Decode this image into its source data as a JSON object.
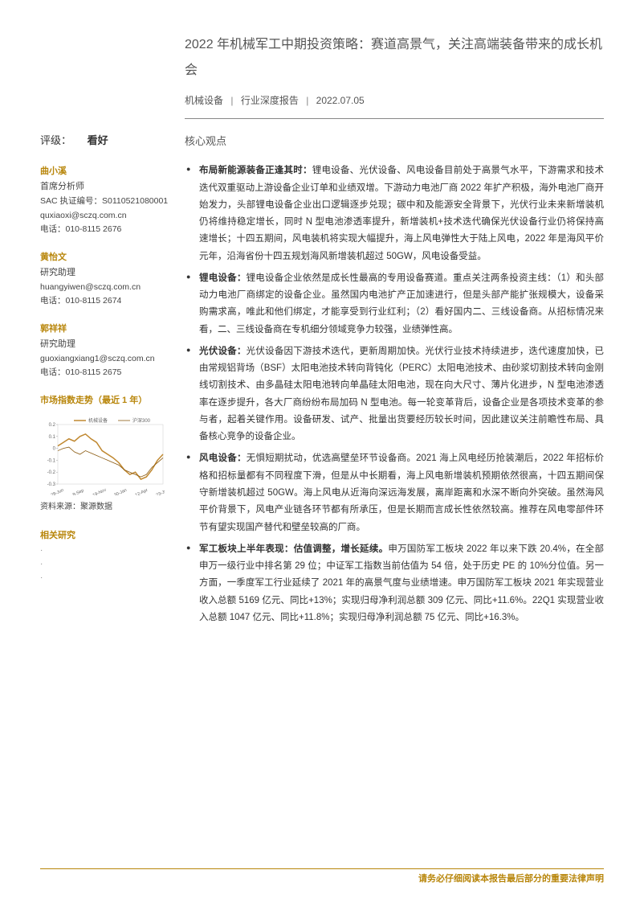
{
  "header": {
    "title": "2022 年机械军工中期投资策略：赛道高景气，关注高端装备带来的成长机会",
    "industry": "机械设备",
    "report_type": "行业深度报告",
    "date": "2022.07.05"
  },
  "rating": {
    "label": "评级：",
    "value": "看好"
  },
  "analysts": [
    {
      "name": "曲小溪",
      "role": "首席分析师",
      "sac": "SAC 执证编号：S0110521080001",
      "email": "quxiaoxi@sczq.com.cn",
      "phone": "电话：010-8115 2676"
    },
    {
      "name": "黄怡文",
      "role": "研究助理",
      "email": "huangyiwen@sczq.com.cn",
      "phone": "电话：010-8115 2674"
    },
    {
      "name": "郭祥祥",
      "role": "研究助理",
      "email": "guoxiangxiang1@sczq.com.cn",
      "phone": "电话：010-8115 2675"
    }
  ],
  "chart": {
    "title": "市场指数走势（最近 1 年）",
    "legend_a": "机械设备",
    "legend_b": "沪深300",
    "yticks": [
      "0.2",
      "0.1",
      "0",
      "-0.1",
      "-0.2",
      "-0.3"
    ],
    "xticks": [
      "28-Jun",
      "8-Sep",
      "19-Nov",
      "30-Jan",
      "12-Apr",
      "23-Jun"
    ],
    "color_a": "#c08830",
    "color_b": "#8a5a10",
    "source": "资料来源：聚源数据",
    "series_a": [
      0.02,
      0.05,
      0.08,
      0.06,
      0.1,
      0.12,
      0.08,
      0.05,
      -0.02,
      -0.05,
      -0.08,
      -0.12,
      -0.18,
      -0.22,
      -0.2,
      -0.26,
      -0.24,
      -0.18,
      -0.1,
      -0.05
    ],
    "series_b": [
      -0.02,
      0.0,
      0.01,
      -0.03,
      -0.05,
      -0.02,
      -0.04,
      -0.06,
      -0.08,
      -0.1,
      -0.12,
      -0.14,
      -0.18,
      -0.2,
      -0.22,
      -0.24,
      -0.22,
      -0.16,
      -0.12,
      -0.08
    ],
    "ylim": [
      -0.3,
      0.2
    ]
  },
  "related": {
    "title": "相关研究",
    "items": [
      "·",
      "·",
      "·"
    ]
  },
  "core": {
    "title": "核心观点",
    "b1_bold": "布局新能源装备正逢其时：",
    "b1_text": "锂电设备、光伏设备、风电设备目前处于高景气水平，下游需求和技术迭代双重驱动上游设备企业订单和业绩双增。下游动力电池厂商 2022 年扩产积极，海外电池厂商开始发力，头部锂电设备企业出口逻辑逐步兑现；碳中和及能源安全背景下，光伏行业未来新增装机仍将维持稳定增长，同时 N 型电池渗透率提升，新增装机+技术迭代确保光伏设备行业仍将保持高速增长；十四五期间，风电装机将实现大幅提升，海上风电弹性大于陆上风电，2022 年是海风平价元年，沿海省份十四五规划海风新增装机超过 50GW，风电设备受益。",
    "b2_bold": "锂电设备：",
    "b2_text": "锂电设备企业依然是成长性最高的专用设备赛道。重点关注两条投资主线：（1）和头部动力电池厂商绑定的设备企业。虽然国内电池扩产正加速进行，但是头部产能扩张规模大，设备采购需求高，唯此和他们绑定，才能享受到行业红利；（2）看好国内二、三线设备商。从招标情况来看，二、三线设备商在专机细分领域竞争力较强，业绩弹性高。",
    "b3_bold": "光伏设备：",
    "b3_text": "光伏设备因下游技术迭代，更新周期加快。光伏行业技术持续进步，迭代速度加快，已由常规铝背场（BSF）太阳电池技术转向背钝化（PERC）太阳电池技术、由砂浆切割技术转向金刚线切割技术、由多晶硅太阳电池转向单晶硅太阳电池，现在向大尺寸、薄片化进步，N 型电池渗透率在逐步提升，各大厂商纷纷布局加码 N 型电池。每一轮变革背后，设备企业是各项技术变革的参与者，起着关键作用。设备研发、试产、批量出货要经历较长时间，因此建议关注前瞻性布局、具备核心竞争的设备企业。",
    "b4_bold": "风电设备：",
    "b4_text": "无惧短期扰动，优选高壁垒环节设备商。2021 海上风电经历抢装潮后，2022 年招标价格和招标量都有不同程度下滑，但是从中长期看，海上风电新增装机预期依然很高，十四五期间保守新增装机超过 50GW。海上风电从近海向深远海发展，离岸距离和水深不断向外突破。虽然海风平价背景下，风电产业链各环节都有所承压，但是长期而言成长性依然较高。推荐在风电零部件环节有望实现国产替代和壁垒较高的厂商。",
    "b5_pre": "军工板块上半年表现：",
    "b5_bold": "估值调整，增长延续。",
    "b5_text": "申万国防军工板块 2022 年以来下跌 20.4%，在全部申万一级行业中排名第 29 位；中证军工指数当前估值为 54 倍，处于历史 PE 的 10%分位值。另一方面，一季度军工行业延续了 2021 年的高景气度与业绩增速。申万国防军工板块 2021 年实现营业收入总额 5169 亿元、同比+13%；实现归母净利润总额 309 亿元、同比+11.6%。22Q1 实现营业收入总额 1047 亿元、同比+11.8%；实现归母净利润总额 75 亿元、同比+16.3%。"
  },
  "footer": "请务必仔细阅读本报告最后部分的重要法律声明"
}
